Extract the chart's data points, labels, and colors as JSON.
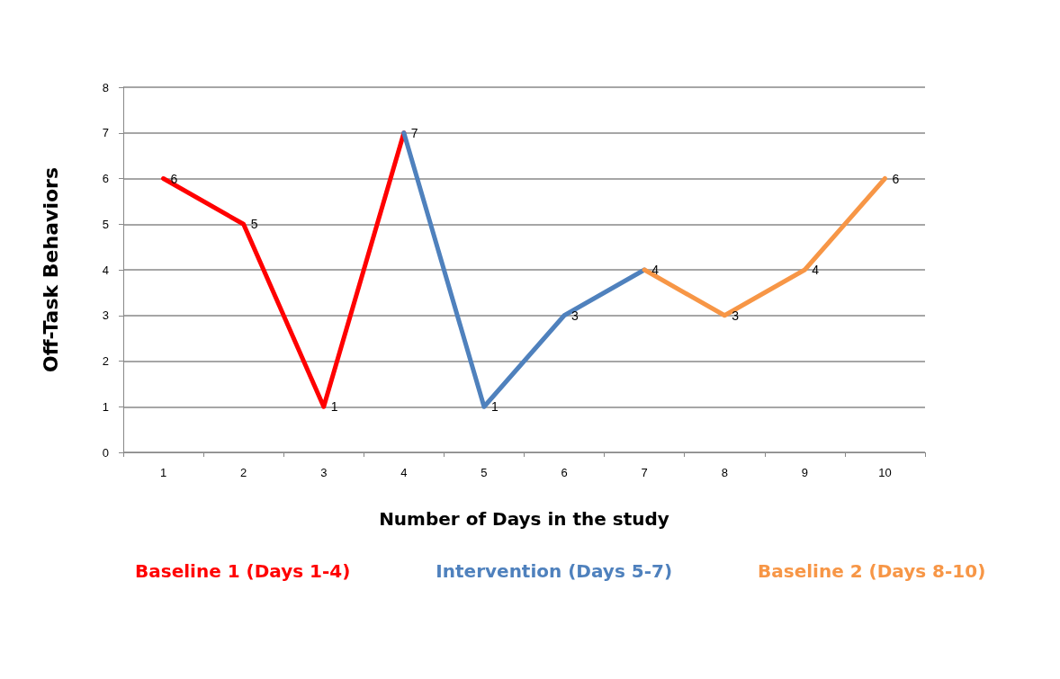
{
  "chart_data": {
    "type": "line",
    "xlabel": "Number of Days in the study",
    "ylabel": "Off-Task Behaviors",
    "categories": [
      "1",
      "2",
      "3",
      "4",
      "5",
      "6",
      "7",
      "8",
      "9",
      "10"
    ],
    "series": [
      {
        "name": "Baseline 1 (Days 1-4)",
        "color": "#ff0000",
        "values": [
          6,
          5,
          1,
          7,
          null,
          null,
          null,
          null,
          null,
          null
        ],
        "value_labels": [
          "6",
          "5",
          "1",
          "7",
          null,
          null,
          null,
          null,
          null,
          null
        ]
      },
      {
        "name": "Intervention (Days 5-7)",
        "color": "#4f81bd",
        "values": [
          null,
          null,
          null,
          7,
          1,
          3,
          4,
          null,
          null,
          null
        ],
        "value_labels": [
          null,
          null,
          null,
          null,
          "1",
          "3",
          "4",
          null,
          null,
          null
        ]
      },
      {
        "name": "Baseline 2 (Days 8-10)",
        "color": "#f79646",
        "values": [
          null,
          null,
          null,
          null,
          null,
          null,
          4,
          3,
          4,
          6
        ],
        "value_labels": [
          null,
          null,
          null,
          null,
          null,
          null,
          null,
          "3",
          "4",
          "6"
        ]
      }
    ],
    "ylim": [
      0,
      8
    ],
    "yticks": [
      0,
      1,
      2,
      3,
      4,
      5,
      6,
      7,
      8
    ],
    "grid": "y",
    "legend": "bottom",
    "marker": "none",
    "line_style": "solid"
  }
}
